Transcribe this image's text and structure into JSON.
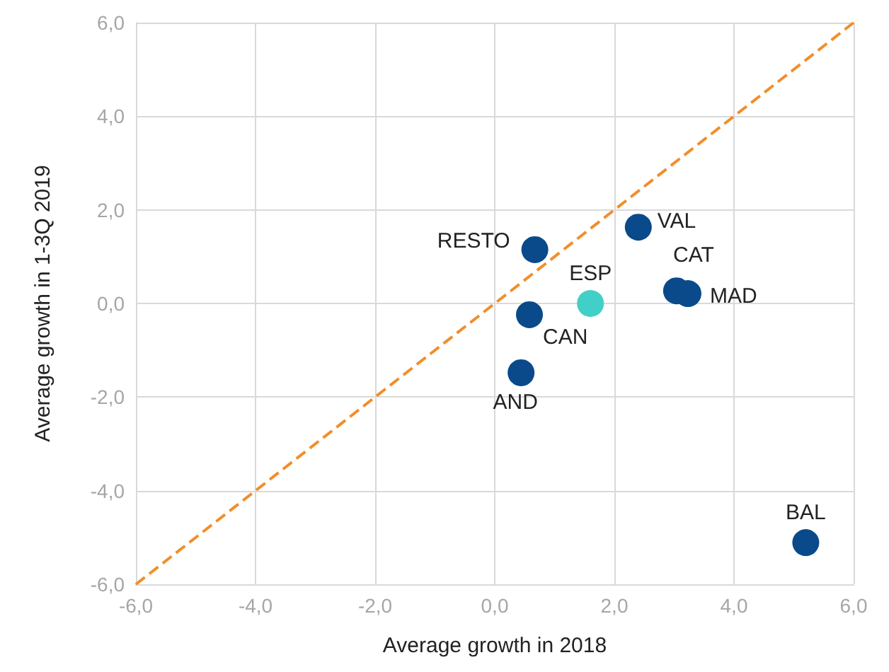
{
  "chart_data": {
    "type": "scatter",
    "xlabel": "Average growth in 2018",
    "ylabel": "Average growth in 1-3Q 2019",
    "xlim": [
      -6,
      6
    ],
    "ylim": [
      -6,
      6
    ],
    "xticks": [
      {
        "value": -6,
        "label": "-6,0"
      },
      {
        "value": -4,
        "label": "-4,0"
      },
      {
        "value": -2,
        "label": "-2,0"
      },
      {
        "value": 0,
        "label": "0,0"
      },
      {
        "value": 2,
        "label": "2,0"
      },
      {
        "value": 4,
        "label": "4,0"
      },
      {
        "value": 6,
        "label": "6,0"
      }
    ],
    "yticks": [
      {
        "value": -6,
        "label": "-6,0"
      },
      {
        "value": -4,
        "label": "-4,0"
      },
      {
        "value": -2,
        "label": "-2,0"
      },
      {
        "value": 0,
        "label": "0,0"
      },
      {
        "value": 2,
        "label": "2,0"
      },
      {
        "value": 4,
        "label": "4,0"
      },
      {
        "value": 6,
        "label": "6,0"
      }
    ],
    "grid": true,
    "marker": "circle",
    "series": [
      {
        "type": "line",
        "color": "#f28e2b",
        "x": [
          -6,
          6
        ],
        "values": [
          -6,
          6
        ],
        "line_style": "dashed",
        "marker": "none"
      },
      {
        "name": "RESTO",
        "color": "#0a4a8a",
        "x": [
          0.67
        ],
        "values": [
          1.15
        ]
      },
      {
        "name": "VAL",
        "color": "#0a4a8a",
        "x": [
          2.4
        ],
        "values": [
          1.63
        ]
      },
      {
        "name": "ESP",
        "color": "#40d0c8",
        "x": [
          1.6
        ],
        "values": [
          0.0
        ]
      },
      {
        "name": "CAT",
        "color": "#0a4a8a",
        "x": [
          3.04
        ],
        "values": [
          0.27
        ]
      },
      {
        "name": "MAD",
        "color": "#0a4a8a",
        "x": [
          3.23
        ],
        "values": [
          0.21
        ]
      },
      {
        "name": "CAN",
        "color": "#0a4a8a",
        "x": [
          0.58
        ],
        "values": [
          -0.24
        ]
      },
      {
        "name": "AND",
        "color": "#0a4a8a",
        "x": [
          0.44
        ],
        "values": [
          -1.48
        ]
      },
      {
        "name": "BAL",
        "color": "#0a4a8a",
        "x": [
          5.2
        ],
        "values": [
          -5.11
        ]
      }
    ]
  }
}
